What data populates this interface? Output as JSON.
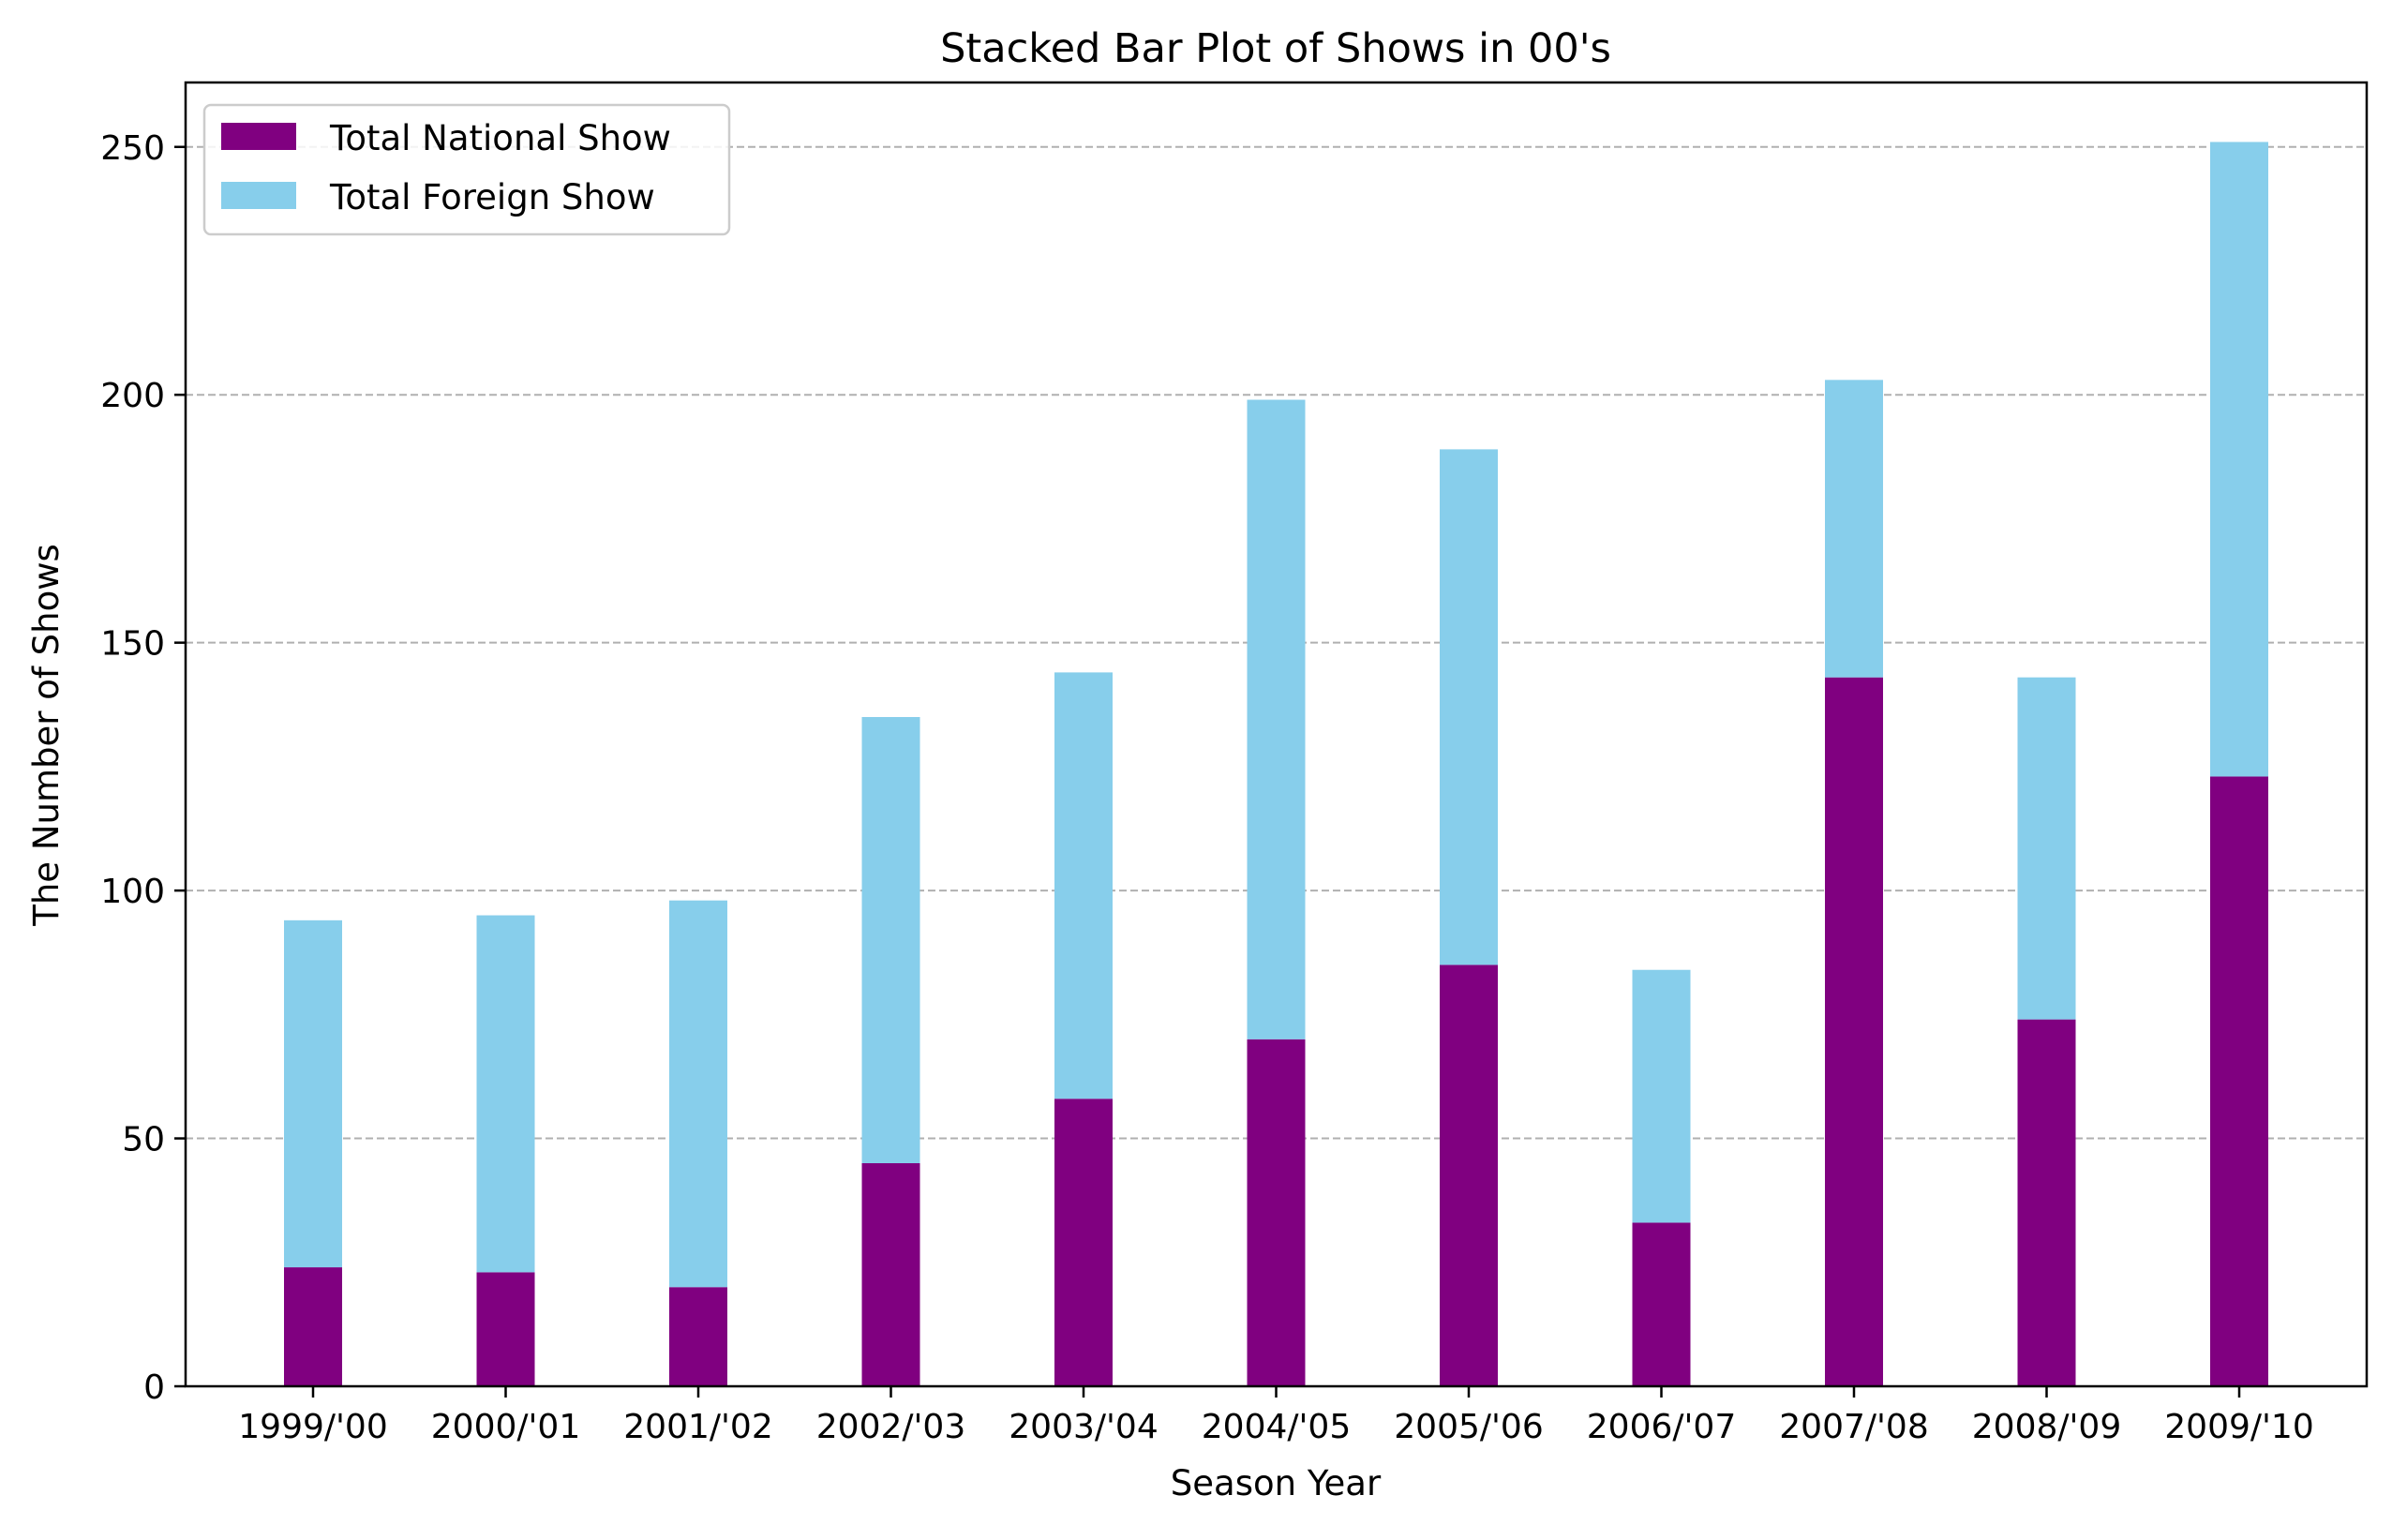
{
  "chart_data": {
    "type": "bar",
    "stacked": true,
    "title": "Stacked Bar Plot of Shows in 00's",
    "xlabel": "Season Year",
    "ylabel": "The Number of Shows",
    "categories": [
      "1999/'00",
      "2000/'01",
      "2001/'02",
      "2002/'03",
      "2003/'04",
      "2004/'05",
      "2005/'06",
      "2006/'07",
      "2007/'08",
      "2008/'09",
      "2009/'10"
    ],
    "series": [
      {
        "name": "Total National Show",
        "color": "#800080",
        "values": [
          24,
          23,
          20,
          45,
          58,
          70,
          85,
          33,
          143,
          74,
          123
        ]
      },
      {
        "name": "Total Foreign Show",
        "color": "#87ceeb",
        "values": [
          70,
          72,
          78,
          90,
          86,
          129,
          104,
          51,
          60,
          69,
          128
        ]
      }
    ],
    "ylim": [
      0,
      263
    ],
    "yticks": [
      0,
      50,
      100,
      150,
      200,
      250
    ],
    "grid": {
      "axis": "y",
      "style": "dashed",
      "color": "#b0b0b0"
    },
    "legend": {
      "position": "top-left"
    }
  }
}
